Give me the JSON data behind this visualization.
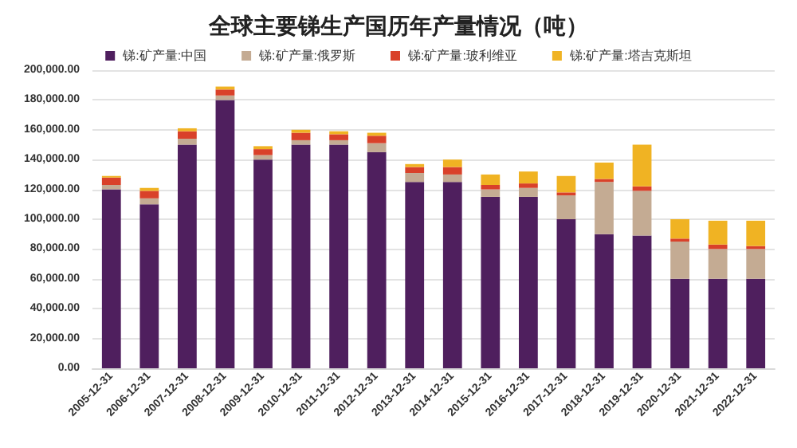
{
  "chart_data": {
    "type": "bar",
    "stacked": true,
    "title": "全球主要锑生产国历年产量情况（吨）",
    "categories": [
      "2005-12-31",
      "2006-12-31",
      "2007-12-31",
      "2008-12-31",
      "2009-12-31",
      "2010-12-31",
      "2011-12-31",
      "2012-12-31",
      "2013-12-31",
      "2014-12-31",
      "2015-12-31",
      "2016-12-31",
      "2017-12-31",
      "2018-12-31",
      "2019-12-31",
      "2020-12-31",
      "2021-12-31",
      "2022-12-31"
    ],
    "series": [
      {
        "name": "锑:矿产量:中国",
        "color": "#4f1f5e",
        "values": [
          120000,
          110000,
          150000,
          180000,
          140000,
          150000,
          150000,
          145000,
          125000,
          125000,
          115000,
          115000,
          100000,
          90000,
          89000,
          60000,
          60000,
          60000
        ]
      },
      {
        "name": "锑:矿产量:俄罗斯",
        "color": "#c4ab93",
        "values": [
          3000,
          4000,
          4000,
          3000,
          3000,
          3000,
          3000,
          6000,
          6000,
          5000,
          5000,
          6000,
          16000,
          35000,
          30000,
          25000,
          20000,
          20000
        ]
      },
      {
        "name": "锑:矿产量:玻利维亚",
        "color": "#d9412a",
        "values": [
          5000,
          5000,
          5000,
          4000,
          4000,
          5000,
          4000,
          5000,
          4000,
          5000,
          3000,
          3000,
          2000,
          2000,
          3000,
          2000,
          3000,
          2000
        ]
      },
      {
        "name": "锑:矿产量:塔吉克斯坦",
        "color": "#f0b323",
        "values": [
          1000,
          2000,
          2000,
          2000,
          2000,
          2000,
          2000,
          2000,
          2000,
          5000,
          7000,
          8000,
          11000,
          11000,
          28000,
          13000,
          16000,
          17000
        ]
      }
    ],
    "ylim": [
      0,
      200000
    ],
    "yticks": [
      {
        "value": 0,
        "label": "0.00"
      },
      {
        "value": 20000,
        "label": "20,000.00"
      },
      {
        "value": 40000,
        "label": "40,000.00"
      },
      {
        "value": 60000,
        "label": "60,000.00"
      },
      {
        "value": 80000,
        "label": "80,000.00"
      },
      {
        "value": 100000,
        "label": "100,000.00"
      },
      {
        "value": 120000,
        "label": "120,000.00"
      },
      {
        "value": 140000,
        "label": "140,000.00"
      },
      {
        "value": 160000,
        "label": "160,000.00"
      },
      {
        "value": 180000,
        "label": "180,000.00"
      },
      {
        "value": 200000,
        "label": "200,000.00"
      }
    ],
    "grid": "y",
    "legend": "top"
  }
}
